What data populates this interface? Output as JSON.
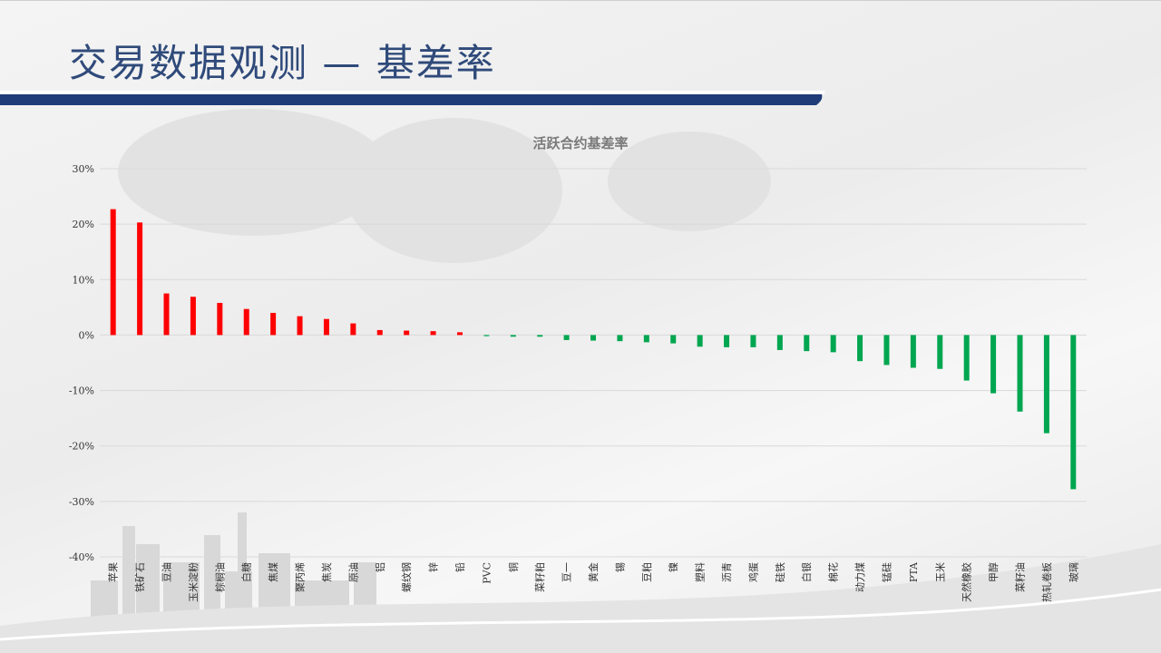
{
  "slide": {
    "title": "交易数据观测 — 基差率"
  },
  "colors": {
    "positive": "#ff0000",
    "negative": "#00a650",
    "title": "#2f4a7a",
    "band": "#1f3c78"
  },
  "chart_data": {
    "type": "bar",
    "title": "活跃合约基差率",
    "xlabel": "",
    "ylabel": "",
    "ylim": [
      -0.4,
      0.3
    ],
    "yticks": [
      0.3,
      0.2,
      0.1,
      0,
      -0.1,
      -0.2,
      -0.3,
      -0.4
    ],
    "ytick_labels": [
      "30%",
      "20%",
      "10%",
      "0%",
      "-10%",
      "-20%",
      "-30%",
      "-40%"
    ],
    "grid": true,
    "legend": "none",
    "categories": [
      "苹果",
      "铁矿石",
      "豆油",
      "玉米淀粉",
      "棕榈油",
      "白糖",
      "焦煤",
      "聚丙烯",
      "焦炭",
      "原油",
      "铝",
      "螺纹钢",
      "锌",
      "铅",
      "PVC",
      "铜",
      "菜籽粕",
      "豆一",
      "黄金",
      "锡",
      "豆粕",
      "镍",
      "塑料",
      "沥青",
      "鸡蛋",
      "硅铁",
      "白银",
      "棉花",
      "动力煤",
      "锰硅",
      "PTA",
      "玉米",
      "天然橡胶",
      "甲醇",
      "菜籽油",
      "热轧卷板",
      "玻璃"
    ],
    "values": [
      0.227,
      0.203,
      0.075,
      0.069,
      0.058,
      0.047,
      0.04,
      0.034,
      0.029,
      0.021,
      0.009,
      0.008,
      0.007,
      0.005,
      -0.002,
      -0.003,
      -0.003,
      -0.009,
      -0.01,
      -0.011,
      -0.013,
      -0.015,
      -0.021,
      -0.022,
      -0.022,
      -0.027,
      -0.029,
      -0.031,
      -0.047,
      -0.054,
      -0.059,
      -0.061,
      -0.082,
      -0.105,
      -0.138,
      -0.177,
      -0.278
    ]
  }
}
